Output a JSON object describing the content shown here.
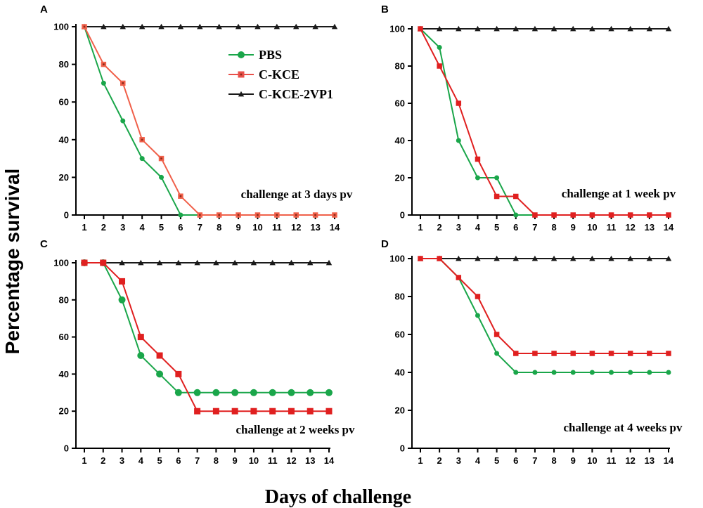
{
  "chart_data": {
    "type": "line",
    "ylabel": "Percentage survival",
    "xlabel": "Days of challenge",
    "legend": {
      "position": "top-right of panel A",
      "entries": [
        {
          "name": "PBS",
          "color": "#1aa64a",
          "marker": "circle"
        },
        {
          "name": "C-KCE",
          "color": "#e8504a",
          "marker": "square"
        },
        {
          "name": "C-KCE-2VP1",
          "color": "#1a1a1a",
          "marker": "triangle"
        }
      ]
    },
    "colors": {
      "PBS": "#1aa64a",
      "C-KCE": "#e02020",
      "C-KCE-2VP1": "#1a1a1a",
      "C-KCE-panelA": "#f0604a"
    },
    "panels": [
      {
        "label": "A",
        "title": "challenge at 3 days pv",
        "x": [
          1,
          2,
          3,
          4,
          5,
          6,
          7,
          8,
          9,
          10,
          11,
          12,
          13,
          14
        ],
        "xlim": [
          1,
          14
        ],
        "ylim": [
          0,
          100
        ],
        "yticks": [
          0,
          20,
          40,
          60,
          80,
          100
        ],
        "series": [
          {
            "name": "PBS",
            "values": [
              100,
              70,
              50,
              30,
              20,
              0,
              0,
              0,
              0,
              0,
              0,
              0,
              0,
              0
            ]
          },
          {
            "name": "C-KCE",
            "values": [
              100,
              80,
              70,
              40,
              30,
              10,
              0,
              0,
              0,
              0,
              0,
              0,
              0,
              0
            ]
          },
          {
            "name": "C-KCE-2VP1",
            "values": [
              100,
              100,
              100,
              100,
              100,
              100,
              100,
              100,
              100,
              100,
              100,
              100,
              100,
              100
            ]
          }
        ]
      },
      {
        "label": "B",
        "title": "challenge at 1 week pv",
        "x": [
          1,
          2,
          3,
          4,
          5,
          6,
          7,
          8,
          9,
          10,
          11,
          12,
          13,
          14
        ],
        "xlim": [
          1,
          14
        ],
        "ylim": [
          0,
          100
        ],
        "yticks": [
          0,
          20,
          40,
          60,
          80,
          100
        ],
        "series": [
          {
            "name": "PBS",
            "values": [
              100,
              90,
              40,
              20,
              20,
              0,
              0,
              0,
              0,
              0,
              0,
              0,
              0,
              0
            ]
          },
          {
            "name": "C-KCE",
            "values": [
              100,
              80,
              60,
              30,
              10,
              10,
              0,
              0,
              0,
              0,
              0,
              0,
              0,
              0
            ]
          },
          {
            "name": "C-KCE-2VP1",
            "values": [
              100,
              100,
              100,
              100,
              100,
              100,
              100,
              100,
              100,
              100,
              100,
              100,
              100,
              100
            ]
          }
        ]
      },
      {
        "label": "C",
        "title": "challenge at 2 weeks pv",
        "x": [
          1,
          2,
          3,
          4,
          5,
          6,
          7,
          8,
          9,
          10,
          11,
          12,
          13,
          14
        ],
        "xlim": [
          1,
          14
        ],
        "ylim": [
          0,
          100
        ],
        "yticks": [
          0,
          20,
          40,
          60,
          80,
          100
        ],
        "series": [
          {
            "name": "PBS",
            "values": [
              100,
              100,
              80,
              50,
              40,
              30,
              30,
              30,
              30,
              30,
              30,
              30,
              30,
              30
            ]
          },
          {
            "name": "C-KCE",
            "values": [
              100,
              100,
              90,
              60,
              50,
              40,
              20,
              20,
              20,
              20,
              20,
              20,
              20,
              20
            ]
          },
          {
            "name": "C-KCE-2VP1",
            "values": [
              100,
              100,
              100,
              100,
              100,
              100,
              100,
              100,
              100,
              100,
              100,
              100,
              100,
              100
            ]
          }
        ]
      },
      {
        "label": "D",
        "title": "challenge at 4 weeks pv",
        "x": [
          1,
          2,
          3,
          4,
          5,
          6,
          7,
          8,
          9,
          10,
          11,
          12,
          13,
          14
        ],
        "xlim": [
          1,
          14
        ],
        "ylim": [
          0,
          100
        ],
        "yticks": [
          0,
          20,
          40,
          60,
          80,
          100
        ],
        "series": [
          {
            "name": "PBS",
            "values": [
              100,
              100,
              90,
              70,
              50,
              40,
              40,
              40,
              40,
              40,
              40,
              40,
              40,
              40
            ]
          },
          {
            "name": "C-KCE",
            "values": [
              100,
              100,
              90,
              80,
              60,
              50,
              50,
              50,
              50,
              50,
              50,
              50,
              50,
              50
            ]
          },
          {
            "name": "C-KCE-2VP1",
            "values": [
              100,
              100,
              100,
              100,
              100,
              100,
              100,
              100,
              100,
              100,
              100,
              100,
              100,
              100
            ]
          }
        ]
      }
    ]
  }
}
